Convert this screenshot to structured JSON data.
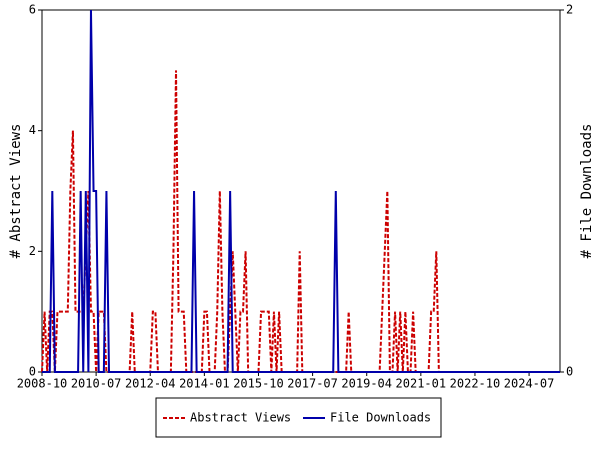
{
  "chart_data": {
    "type": "line",
    "y_label": "# Abstract Views",
    "y2_label": "# File Downloads",
    "x": [
      "2008-10",
      "2008-11",
      "2008-12",
      "2009-01",
      "2009-02",
      "2009-03",
      "2009-04",
      "2009-05",
      "2009-06",
      "2009-07",
      "2009-08",
      "2009-09",
      "2009-10",
      "2009-11",
      "2009-12",
      "2010-01",
      "2010-02",
      "2010-03",
      "2010-04",
      "2010-05",
      "2010-06",
      "2010-07",
      "2010-08",
      "2010-09",
      "2010-10",
      "2010-11",
      "2010-12",
      "2011-01",
      "2011-02",
      "2011-03",
      "2011-04",
      "2011-05",
      "2011-06",
      "2011-07",
      "2011-08",
      "2011-09",
      "2011-10",
      "2011-11",
      "2011-12",
      "2012-01",
      "2012-02",
      "2012-03",
      "2012-04",
      "2012-05",
      "2012-06",
      "2012-07",
      "2012-08",
      "2012-09",
      "2012-10",
      "2012-11",
      "2012-12",
      "2013-01",
      "2013-02",
      "2013-03",
      "2013-04",
      "2013-05",
      "2013-06",
      "2013-07",
      "2013-08",
      "2013-09",
      "2013-10",
      "2013-11",
      "2013-12",
      "2014-01",
      "2014-02",
      "2014-03",
      "2014-04",
      "2014-05",
      "2014-06",
      "2014-07",
      "2014-08",
      "2014-09",
      "2014-10",
      "2014-11",
      "2014-12",
      "2015-01",
      "2015-02",
      "2015-03",
      "2015-04",
      "2015-05",
      "2015-06",
      "2015-07",
      "2015-08",
      "2015-09",
      "2015-10",
      "2015-11",
      "2015-12",
      "2016-01",
      "2016-02",
      "2016-03",
      "2016-04",
      "2016-05",
      "2016-06",
      "2016-07",
      "2016-08",
      "2016-09",
      "2016-10",
      "2016-11",
      "2016-12",
      "2017-01",
      "2017-02",
      "2017-03",
      "2017-04",
      "2017-05",
      "2017-06",
      "2017-07",
      "2017-08",
      "2017-09",
      "2017-10",
      "2017-11",
      "2017-12",
      "2018-01",
      "2018-02",
      "2018-03",
      "2018-04",
      "2018-05",
      "2018-06",
      "2018-07",
      "2018-08",
      "2018-09",
      "2018-10",
      "2018-11",
      "2018-12",
      "2019-01",
      "2019-02",
      "2019-03",
      "2019-04",
      "2019-05",
      "2019-06",
      "2019-07",
      "2019-08",
      "2019-09",
      "2019-10",
      "2019-11",
      "2019-12",
      "2020-01",
      "2020-02",
      "2020-03",
      "2020-04",
      "2020-05",
      "2020-06",
      "2020-07",
      "2020-08",
      "2020-09",
      "2020-10",
      "2020-11",
      "2020-12",
      "2021-01",
      "2021-02",
      "2021-03",
      "2021-04",
      "2021-05",
      "2021-06",
      "2021-07",
      "2021-08",
      "2021-09",
      "2021-10",
      "2021-11",
      "2021-12",
      "2022-01",
      "2022-02",
      "2022-03",
      "2022-04",
      "2022-05",
      "2022-06",
      "2022-07",
      "2022-08",
      "2022-09",
      "2022-10",
      "2022-11",
      "2022-12",
      "2023-01",
      "2023-02",
      "2023-03",
      "2023-04",
      "2023-05",
      "2023-06",
      "2023-07",
      "2023-08",
      "2023-09",
      "2023-10",
      "2023-11",
      "2023-12",
      "2024-01",
      "2024-02",
      "2024-03",
      "2024-04",
      "2024-05",
      "2024-06",
      "2024-07",
      "2024-08",
      "2024-09",
      "2024-10",
      "2024-11",
      "2024-12",
      "2025-01",
      "2025-02",
      "2025-03",
      "2025-04",
      "2025-05",
      "2025-06",
      "2025-07"
    ],
    "series": [
      {
        "name": "Abstract Views",
        "color": "#cc0000",
        "dash": true,
        "axis": "y",
        "values": [
          0,
          1,
          0,
          1,
          1,
          0,
          1,
          1,
          1,
          1,
          1,
          3,
          4,
          1,
          1,
          1,
          1,
          2,
          3,
          1,
          1,
          0,
          1,
          1,
          1,
          0,
          0,
          0,
          0,
          0,
          0,
          0,
          0,
          0,
          0,
          1,
          0,
          0,
          0,
          0,
          0,
          0,
          0,
          1,
          1,
          0,
          0,
          0,
          0,
          0,
          0,
          2,
          5,
          1,
          1,
          1,
          0,
          0,
          0,
          0,
          0,
          0,
          0,
          1,
          1,
          0,
          0,
          0,
          1,
          3,
          1,
          0,
          0,
          1,
          2,
          1,
          0,
          1,
          1,
          2,
          0,
          0,
          0,
          0,
          0,
          1,
          1,
          1,
          1,
          0,
          1,
          0,
          1,
          0,
          0,
          0,
          0,
          0,
          0,
          0,
          2,
          0,
          0,
          0,
          0,
          0,
          0,
          0,
          0,
          0,
          0,
          0,
          0,
          0,
          0,
          0,
          0,
          0,
          0,
          1,
          0,
          0,
          0,
          0,
          0,
          0,
          0,
          0,
          0,
          0,
          0,
          0,
          1,
          2,
          3,
          0,
          0,
          1,
          0,
          1,
          0,
          1,
          0,
          0,
          1,
          0,
          0,
          0,
          0,
          0,
          0,
          1,
          1,
          2,
          0,
          0,
          0,
          0,
          0,
          0,
          0,
          0,
          0,
          0,
          0,
          0,
          0,
          0,
          0,
          0,
          0,
          0,
          0,
          0,
          0,
          0,
          0,
          0,
          0,
          0,
          0,
          0,
          0,
          0,
          0,
          0,
          0,
          0,
          0,
          0,
          0,
          0,
          0,
          0,
          0,
          0,
          0,
          0,
          0,
          0,
          0,
          0
        ]
      },
      {
        "name": "File Downloads",
        "color": "#0000aa",
        "dash": false,
        "axis": "y2",
        "values": [
          0,
          0,
          0,
          0,
          1,
          0,
          0,
          0,
          0,
          0,
          0,
          0,
          0,
          0,
          0,
          1,
          0,
          1,
          0,
          2,
          1,
          1,
          0,
          0,
          0,
          1,
          0,
          0,
          0,
          0,
          0,
          0,
          0,
          0,
          0,
          0,
          0,
          0,
          0,
          0,
          0,
          0,
          0,
          0,
          0,
          0,
          0,
          0,
          0,
          0,
          0,
          0,
          0,
          0,
          0,
          0,
          0,
          0,
          0,
          1,
          0,
          0,
          0,
          0,
          0,
          0,
          0,
          0,
          0,
          0,
          0,
          0,
          0,
          1,
          0,
          0,
          0,
          0,
          0,
          0,
          0,
          0,
          0,
          0,
          0,
          0,
          0,
          0,
          0,
          0,
          0,
          0,
          0,
          0,
          0,
          0,
          0,
          0,
          0,
          0,
          0,
          0,
          0,
          0,
          0,
          0,
          0,
          0,
          0,
          0,
          0,
          0,
          0,
          0,
          1,
          0,
          0,
          0,
          0,
          0,
          0,
          0,
          0,
          0,
          0,
          0,
          0,
          0,
          0,
          0,
          0,
          0,
          0,
          0,
          0,
          0,
          0,
          0,
          0,
          0,
          0,
          0,
          0,
          0,
          0,
          0,
          0,
          0,
          0,
          0,
          0,
          0,
          0,
          0,
          0,
          0,
          0,
          0,
          0,
          0,
          0,
          0,
          0,
          0,
          0,
          0,
          0,
          0,
          0,
          0,
          0,
          0,
          0,
          0,
          0,
          0,
          0,
          0,
          0,
          0,
          0,
          0,
          0,
          0,
          0,
          0,
          0,
          0,
          0,
          0,
          0,
          0,
          0,
          0,
          0,
          0,
          0,
          0,
          0,
          0,
          0,
          0
        ]
      }
    ],
    "xticks": [
      "2008-10",
      "2010-07",
      "2012-04",
      "2014-01",
      "2015-10",
      "2017-07",
      "2019-04",
      "2021-01",
      "2022-10",
      "2024-07"
    ],
    "ylim": [
      0,
      6
    ],
    "yticks": [
      0,
      2,
      4,
      6
    ],
    "y2lim": [
      0,
      2
    ],
    "y2ticks": [
      0,
      2
    ],
    "legend": "bottom"
  }
}
